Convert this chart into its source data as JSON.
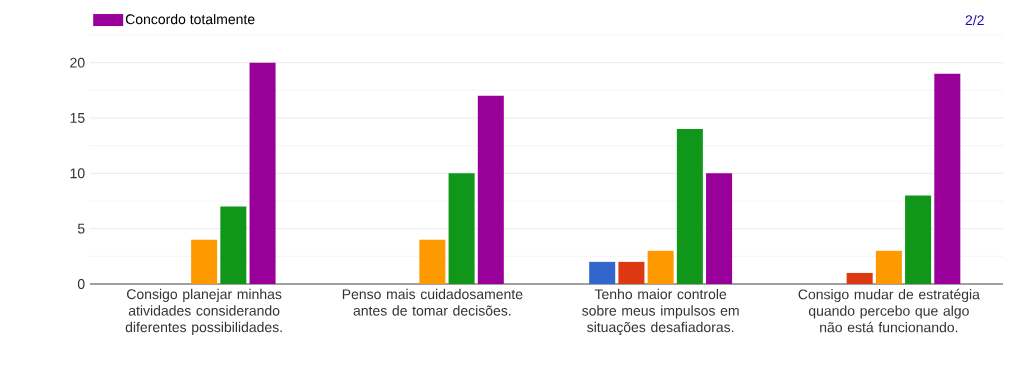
{
  "chart_data": {
    "type": "bar",
    "categories": [
      "Consigo planejar minhas atividades considerando diferentes possibilidades.",
      "Penso mais cuidadosamente antes de tomar decisões.",
      "Tenho maior controle sobre meus impulsos em situações desafiadoras.",
      "Consigo mudar de estratégia quando percebo que algo não está funcionando."
    ],
    "series": [
      {
        "color": "#3366cc",
        "values": [
          0,
          0,
          2,
          0
        ]
      },
      {
        "color": "#dc3912",
        "values": [
          0,
          0,
          2,
          1
        ]
      },
      {
        "color": "#ff9900",
        "values": [
          4,
          4,
          3,
          3
        ]
      },
      {
        "color": "#109618",
        "values": [
          7,
          10,
          14,
          8
        ]
      },
      {
        "name": "Concordo totalmente",
        "color": "#990099",
        "values": [
          20,
          17,
          10,
          19
        ]
      }
    ],
    "ylim": [
      0,
      22.5
    ],
    "yticks": [
      0,
      5,
      10,
      15,
      20
    ],
    "grid": "y",
    "legend": "top left",
    "annotations": [
      "2/2"
    ]
  }
}
